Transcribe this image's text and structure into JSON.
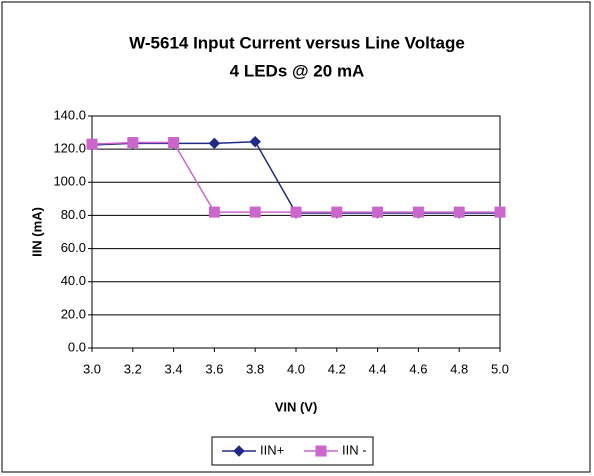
{
  "chart_data": {
    "type": "line",
    "title": "W-5614 Input Current versus Line Voltage",
    "subtitle": "4 LEDs @ 20 mA",
    "x_label": "VIN (V)",
    "y_label": "IIN (mA)",
    "x": [
      3.0,
      3.2,
      3.4,
      3.6,
      3.8,
      4.0,
      4.2,
      4.4,
      4.6,
      4.8,
      5.0
    ],
    "series": [
      {
        "name": "IIN+",
        "color": "#1f2a8a",
        "marker": "diamond",
        "values": [
          122.5,
          123.5,
          123.5,
          123.5,
          124.5,
          81.5,
          81.5,
          81.5,
          81.5,
          81.5,
          81.5
        ]
      },
      {
        "name": "IIN -",
        "color": "#cc66cc",
        "marker": "square",
        "values": [
          123,
          124,
          124,
          82,
          82,
          82,
          82,
          82,
          82,
          82,
          82
        ]
      }
    ],
    "xlim": [
      3.0,
      5.0
    ],
    "xticks": [
      {
        "value": 3.0,
        "label": "3.0"
      },
      {
        "value": 3.2,
        "label": "3.2"
      },
      {
        "value": 3.4,
        "label": "3.4"
      },
      {
        "value": 3.6,
        "label": "3.6"
      },
      {
        "value": 3.8,
        "label": "3.8"
      },
      {
        "value": 4.0,
        "label": "4.0"
      },
      {
        "value": 4.2,
        "label": "4.2"
      },
      {
        "value": 4.4,
        "label": "4.4"
      },
      {
        "value": 4.6,
        "label": "4.6"
      },
      {
        "value": 4.8,
        "label": "4.8"
      },
      {
        "value": 5.0,
        "label": "5.0"
      }
    ],
    "ylim": [
      0,
      140
    ],
    "yticks": [
      {
        "value": 0,
        "label": "0.0"
      },
      {
        "value": 20,
        "label": "20.0"
      },
      {
        "value": 40,
        "label": "40.0"
      },
      {
        "value": 60,
        "label": "60.0"
      },
      {
        "value": 80,
        "label": "80.0"
      },
      {
        "value": 100,
        "label": "100.0"
      },
      {
        "value": 120,
        "label": "120.0"
      },
      {
        "value": 140,
        "label": "140.0"
      }
    ],
    "grid": true,
    "legend": "bottom"
  }
}
